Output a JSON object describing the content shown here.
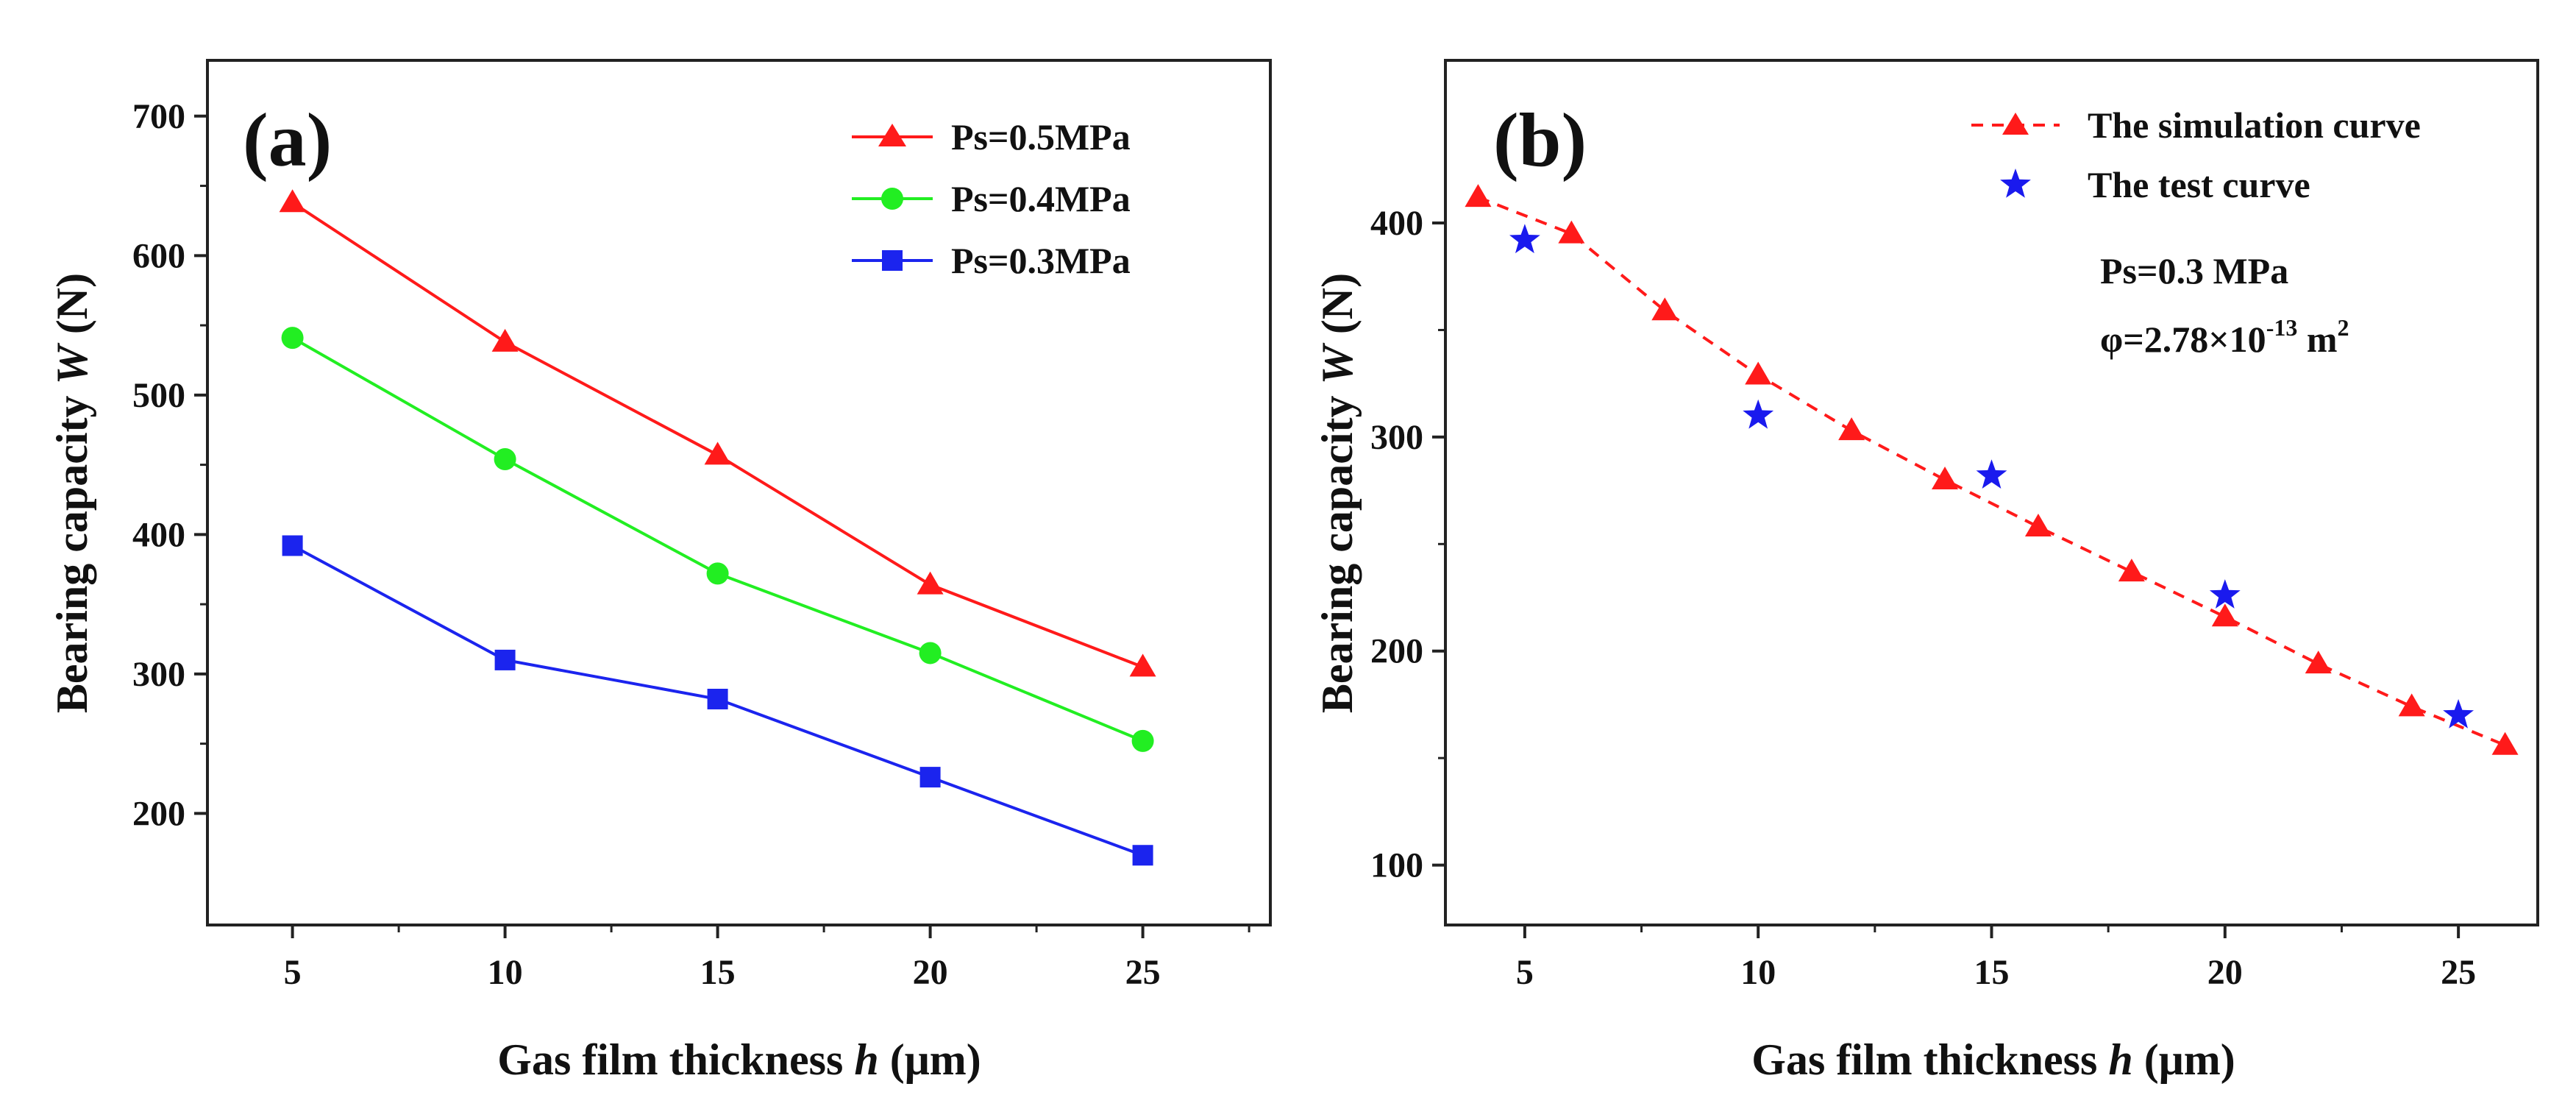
{
  "colors": {
    "red": "#ff1a1a",
    "green": "#22ee22",
    "blue": "#1b24ee",
    "star_blue": "#1a1aee",
    "axis": "#222222"
  },
  "chart_data": [
    {
      "type": "line",
      "panel_label": "(a)",
      "xlabel_prefix": "Gas film thickness ",
      "xlabel_var": "h",
      "xlabel_suffix": " (μm)",
      "ylabel_prefix": "Bearing capacity ",
      "ylabel_var": "W",
      "ylabel_suffix": " (N)",
      "xlim": [
        3,
        28
      ],
      "ylim": [
        120,
        740
      ],
      "xticks": [
        5,
        10,
        15,
        20,
        25
      ],
      "xtick_labels": [
        "5",
        "10",
        "15",
        "20",
        "25"
      ],
      "yticks": [
        200,
        300,
        400,
        500,
        600,
        700
      ],
      "ytick_labels": [
        "200",
        "300",
        "400",
        "500",
        "600",
        "700"
      ],
      "legend_position": "top-right",
      "x": [
        5,
        10,
        15,
        20,
        25
      ],
      "series": [
        {
          "name": "Ps=0.5MPa",
          "marker": "triangle",
          "color": "#ff1a1a",
          "values": [
            638,
            538,
            457,
            364,
            305
          ]
        },
        {
          "name": "Ps=0.4MPa",
          "marker": "circle",
          "color": "#22ee22",
          "values": [
            541,
            454,
            372,
            315,
            252
          ]
        },
        {
          "name": "Ps=0.3MPa",
          "marker": "square",
          "color": "#1b24ee",
          "values": [
            392,
            310,
            282,
            226,
            170
          ]
        }
      ]
    },
    {
      "type": "scatter",
      "panel_label": "(b)",
      "xlabel_prefix": "Gas film thickness ",
      "xlabel_var": "h",
      "xlabel_suffix": " (μm)",
      "ylabel_prefix": "Bearing capacity ",
      "ylabel_var": "W",
      "ylabel_suffix": " (N)",
      "xlim": [
        3.3,
        26.7
      ],
      "ylim": [
        72,
        476
      ],
      "xticks": [
        5,
        10,
        15,
        20,
        25
      ],
      "xtick_labels": [
        "5",
        "10",
        "15",
        "20",
        "25"
      ],
      "yticks": [
        100,
        200,
        300,
        400
      ],
      "ytick_labels": [
        "100",
        "200",
        "300",
        "400"
      ],
      "legend_position": "top-right",
      "series": [
        {
          "name": "The simulation curve",
          "marker": "triangle",
          "line": "dashed",
          "color": "#ff1a1a",
          "x": [
            4,
            6,
            8,
            10,
            12,
            14,
            16,
            18,
            20,
            22,
            24,
            26
          ],
          "values": [
            412,
            395,
            359,
            329,
            303,
            280,
            258,
            237,
            216,
            194,
            174,
            156
          ]
        },
        {
          "name": "The test curve",
          "marker": "star",
          "line": "none",
          "color": "#1a1aee",
          "x": [
            5,
            10,
            15,
            20,
            25
          ],
          "values": [
            392,
            310,
            282,
            226,
            170
          ]
        }
      ],
      "annotation": {
        "line1": "Ps=0.3 MPa",
        "line2_prefix": "φ=2.78×10",
        "line2_exp": "-13",
        "line2_unit": " m",
        "line2_unit_exp": "2"
      }
    }
  ]
}
